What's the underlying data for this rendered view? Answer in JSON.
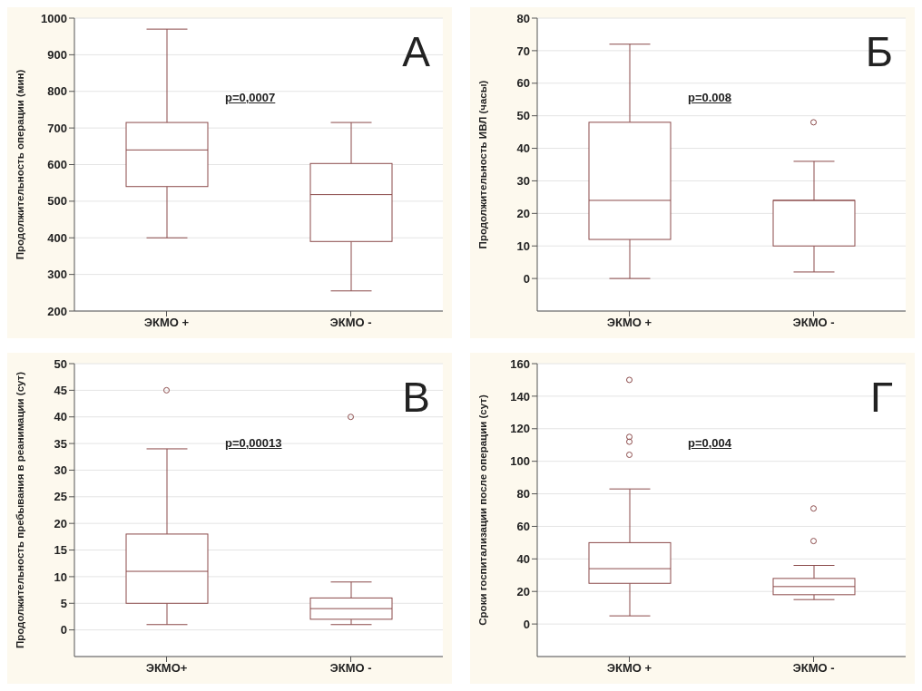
{
  "chart_data": [
    {
      "type": "box",
      "title": "А",
      "ylabel": "Продолжительность операции (мин)",
      "categories": [
        "ЭКМО +",
        "ЭКМО -"
      ],
      "color": "#8b4a4a",
      "ylim": [
        200,
        1000
      ],
      "yticks": [
        200,
        300,
        400,
        500,
        600,
        700,
        800,
        900,
        1000
      ],
      "grid": "y",
      "annotations": [
        "p=0,0007"
      ],
      "boxes": [
        {
          "low": 400,
          "q1": 540,
          "median": 640,
          "q3": 715,
          "high": 970
        },
        {
          "low": 255,
          "q1": 390,
          "median": 518,
          "q3": 603,
          "high": 715
        }
      ]
    },
    {
      "type": "box",
      "title": "Б",
      "ylabel": "Продолжительность ИВЛ (часы)",
      "categories": [
        "ЭКМО +",
        "ЭКМО -"
      ],
      "color": "#8b4a4a",
      "ylim": [
        -10,
        80
      ],
      "yticks": [
        0,
        10,
        20,
        30,
        40,
        50,
        60,
        70,
        80
      ],
      "grid": "y",
      "annotations": [
        "p=0.008"
      ],
      "boxes": [
        {
          "low": 0,
          "q1": 12,
          "median": 24,
          "q3": 48,
          "high": 72
        },
        {
          "low": 2,
          "q1": 10,
          "median": 24,
          "q3": 24,
          "high": 36,
          "outliers": [
            48
          ]
        }
      ]
    },
    {
      "type": "box",
      "title": "В",
      "ylabel": "Продолжительность пребывания в реанимации (сут)",
      "categories": [
        "ЭКМО+",
        "ЭКМО -"
      ],
      "color": "#8b4a4a",
      "ylim": [
        -5,
        50
      ],
      "yticks": [
        0,
        5,
        10,
        15,
        20,
        25,
        30,
        35,
        40,
        45,
        50
      ],
      "grid": "y",
      "annotations": [
        "p=0,00013"
      ],
      "boxes": [
        {
          "low": 1,
          "q1": 5,
          "median": 11,
          "q3": 18,
          "high": 34,
          "outliers": [
            45
          ]
        },
        {
          "low": 1,
          "q1": 2,
          "median": 4,
          "q3": 6,
          "high": 9,
          "outliers": [
            40
          ]
        }
      ]
    },
    {
      "type": "box",
      "title": "Г",
      "ylabel": "Сроки госпитализации после операции (сут)",
      "categories": [
        "ЭКМО +",
        "ЭКМО -"
      ],
      "color": "#8b4a4a",
      "ylim": [
        -20,
        160
      ],
      "yticks": [
        0,
        20,
        40,
        60,
        80,
        100,
        120,
        140,
        160
      ],
      "grid": "y",
      "annotations": [
        "p=0,004"
      ],
      "boxes": [
        {
          "low": 5,
          "q1": 25,
          "median": 34,
          "q3": 50,
          "high": 83,
          "outliers": [
            104,
            112,
            115,
            150
          ]
        },
        {
          "low": 15,
          "q1": 18,
          "median": 23,
          "q3": 28,
          "high": 36,
          "outliers": [
            51,
            71
          ]
        }
      ]
    }
  ]
}
